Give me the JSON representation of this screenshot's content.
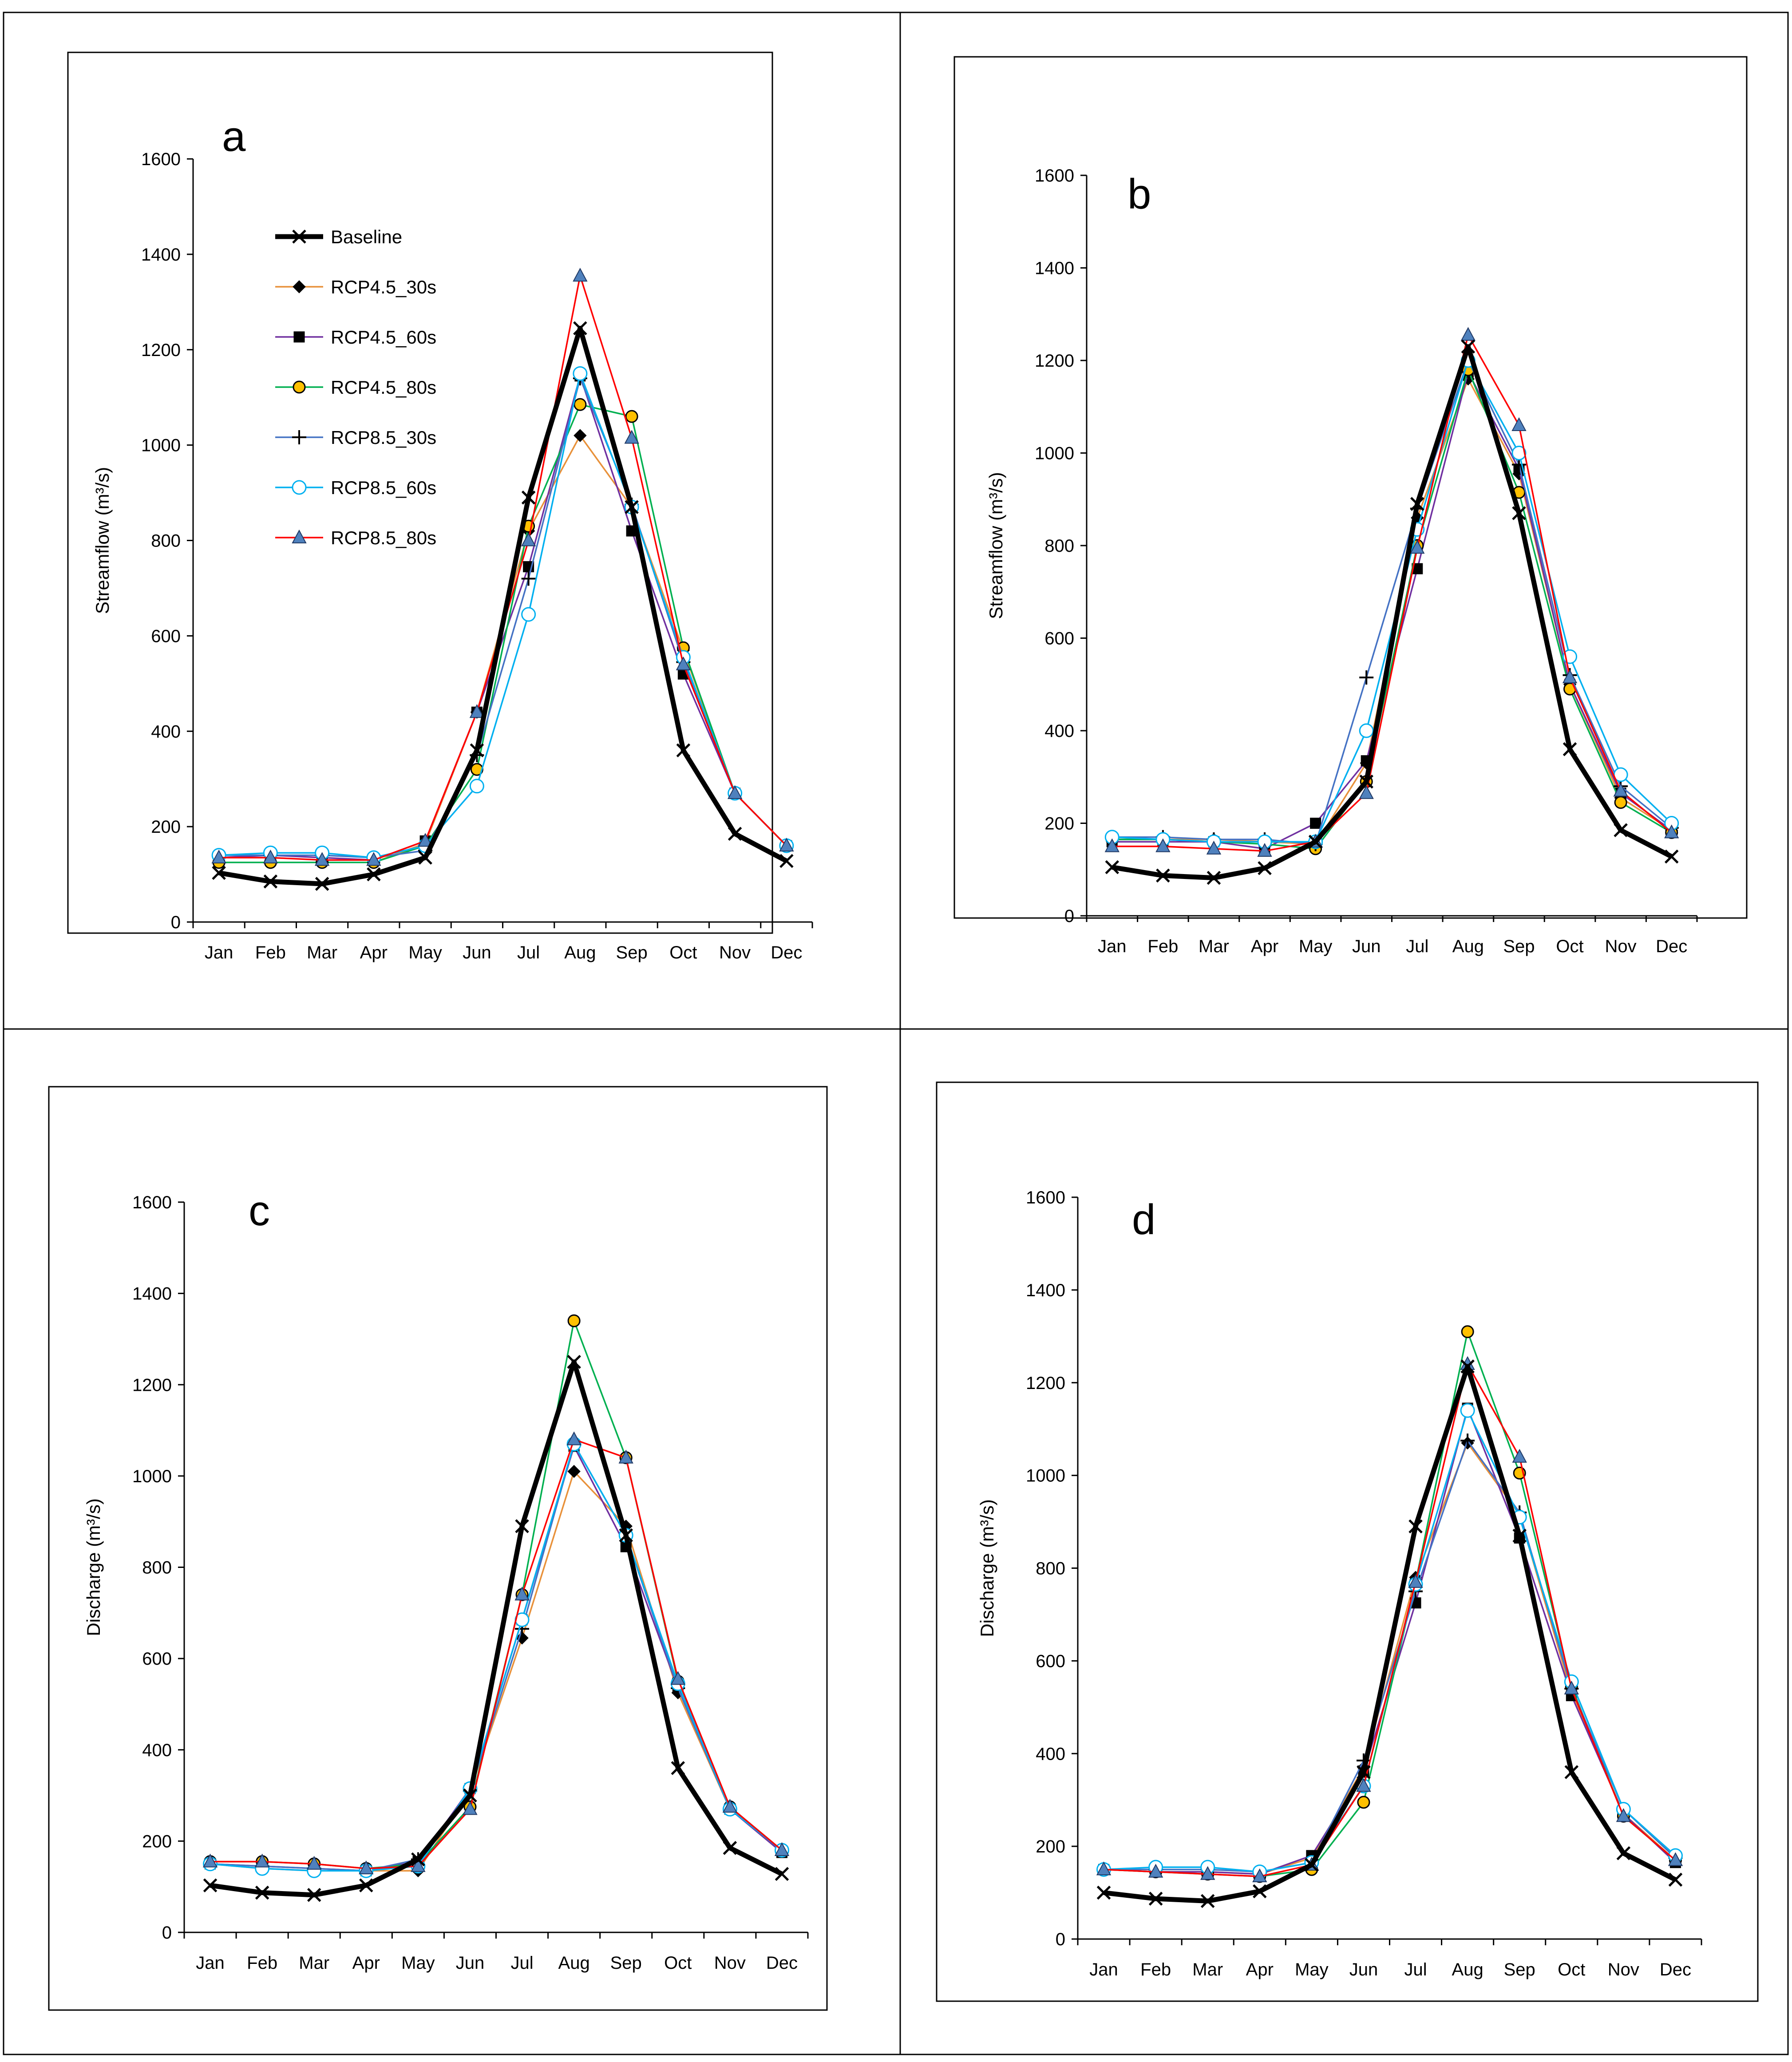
{
  "months": [
    "Jan",
    "Feb",
    "Mar",
    "Apr",
    "May",
    "Jun",
    "Jul",
    "Aug",
    "Sep",
    "Oct",
    "Nov",
    "Dec"
  ],
  "series_styles": [
    {
      "name": "Baseline",
      "color": "#000000",
      "marker": "x",
      "fill": "#000000",
      "width": "thick"
    },
    {
      "name": "RCP4.5_30s",
      "color": "#e8913a",
      "marker": "diamond",
      "fill": "#000000",
      "width": "thin"
    },
    {
      "name": "RCP4.5_60s",
      "color": "#7030a0",
      "marker": "square",
      "fill": "#000000",
      "width": "thin"
    },
    {
      "name": "RCP4.5_80s",
      "color": "#00b050",
      "marker": "circle",
      "fill": "#ffc000",
      "width": "thin"
    },
    {
      "name": "RCP8.5_30s",
      "color": "#4472c4",
      "marker": "plus",
      "fill": "#000000",
      "width": "thin"
    },
    {
      "name": "RCP8.5_60s",
      "color": "#00b0f0",
      "marker": "open-circle",
      "fill": "#ffffff",
      "width": "thin"
    },
    {
      "name": "RCP8.5_80s",
      "color": "#ff0000",
      "marker": "triangle",
      "fill": "#4f81bd",
      "width": "thin"
    }
  ],
  "chart_data": [
    {
      "panel": "a",
      "type": "line",
      "ylabel": "Streamflow (m³/s)",
      "xlabel": "",
      "ylim": [
        0,
        1600
      ],
      "yticks": [
        0,
        200,
        400,
        600,
        800,
        1000,
        1200,
        1400,
        1600
      ],
      "legend_position": "top-left",
      "series": [
        {
          "name": "Baseline",
          "values": [
            103,
            85,
            80,
            100,
            135,
            360,
            890,
            1245,
            870,
            360,
            185,
            128
          ]
        },
        {
          "name": "RCP4.5_30s",
          "values": [
            125,
            125,
            125,
            125,
            165,
            440,
            820,
            1020,
            870,
            570,
            270,
            160
          ]
        },
        {
          "name": "RCP4.5_60s",
          "values": [
            135,
            140,
            135,
            130,
            170,
            440,
            745,
            1145,
            820,
            520,
            270,
            160
          ]
        },
        {
          "name": "RCP4.5_80s",
          "values": [
            125,
            125,
            125,
            125,
            160,
            320,
            830,
            1085,
            1060,
            575,
            270,
            160
          ]
        },
        {
          "name": "RCP8.5_30s",
          "values": [
            140,
            140,
            140,
            135,
            150,
            350,
            720,
            1140,
            875,
            545,
            270,
            160
          ]
        },
        {
          "name": "RCP8.5_60s",
          "values": [
            140,
            145,
            145,
            135,
            160,
            285,
            645,
            1150,
            870,
            555,
            270,
            160
          ]
        },
        {
          "name": "RCP8.5_80s",
          "values": [
            135,
            135,
            130,
            130,
            170,
            440,
            800,
            1355,
            1015,
            540,
            270,
            160
          ]
        }
      ]
    },
    {
      "panel": "b",
      "type": "line",
      "ylabel": "Streamflow (m³/s)",
      "xlabel": "",
      "ylim": [
        0,
        1600
      ],
      "yticks": [
        0,
        200,
        400,
        600,
        800,
        1000,
        1200,
        1400,
        1600
      ],
      "series": [
        {
          "name": "Baseline",
          "values": [
            105,
            87,
            82,
            103,
            160,
            290,
            890,
            1230,
            870,
            360,
            185,
            128
          ]
        },
        {
          "name": "RCP4.5_30s",
          "values": [
            165,
            165,
            165,
            160,
            155,
            330,
            860,
            1160,
            955,
            500,
            255,
            185
          ]
        },
        {
          "name": "RCP4.5_60s",
          "values": [
            160,
            160,
            160,
            145,
            200,
            335,
            750,
            1175,
            965,
            500,
            265,
            185
          ]
        },
        {
          "name": "RCP4.5_80s",
          "values": [
            165,
            165,
            160,
            155,
            145,
            290,
            800,
            1180,
            915,
            490,
            245,
            180
          ]
        },
        {
          "name": "RCP8.5_30s",
          "values": [
            170,
            170,
            165,
            165,
            155,
            515,
            880,
            1200,
            975,
            520,
            280,
            190
          ]
        },
        {
          "name": "RCP8.5_60s",
          "values": [
            170,
            165,
            160,
            160,
            160,
            400,
            835,
            1200,
            1000,
            560,
            305,
            200
          ]
        },
        {
          "name": "RCP8.5_80s",
          "values": [
            150,
            150,
            145,
            140,
            160,
            265,
            795,
            1255,
            1060,
            515,
            270,
            180
          ]
        }
      ]
    },
    {
      "panel": "c",
      "type": "line",
      "ylabel": "Discharge (m³/s)",
      "xlabel": "",
      "ylim": [
        0,
        1600
      ],
      "yticks": [
        0,
        200,
        400,
        600,
        800,
        1000,
        1200,
        1400,
        1600
      ],
      "series": [
        {
          "name": "Baseline",
          "values": [
            103,
            87,
            82,
            103,
            160,
            300,
            890,
            1250,
            870,
            360,
            185,
            128
          ]
        },
        {
          "name": "RCP4.5_30s",
          "values": [
            150,
            140,
            135,
            135,
            135,
            310,
            645,
            1010,
            890,
            525,
            270,
            180
          ]
        },
        {
          "name": "RCP4.5_60s",
          "values": [
            150,
            145,
            140,
            135,
            155,
            315,
            685,
            1065,
            845,
            535,
            270,
            175
          ]
        },
        {
          "name": "RCP4.5_80s",
          "values": [
            155,
            155,
            150,
            140,
            150,
            275,
            740,
            1340,
            1040,
            550,
            275,
            180
          ]
        },
        {
          "name": "RCP8.5_30s",
          "values": [
            150,
            145,
            140,
            135,
            160,
            310,
            665,
            1070,
            870,
            535,
            270,
            180
          ]
        },
        {
          "name": "RCP8.5_60s",
          "values": [
            150,
            140,
            135,
            135,
            145,
            315,
            685,
            1070,
            870,
            545,
            270,
            180
          ]
        },
        {
          "name": "RCP8.5_80s",
          "values": [
            155,
            155,
            150,
            140,
            145,
            270,
            740,
            1080,
            1040,
            555,
            275,
            180
          ]
        }
      ]
    },
    {
      "panel": "d",
      "type": "line",
      "ylabel": "Discharge (m³/s)",
      "xlabel": "",
      "ylim": [
        0,
        1600
      ],
      "yticks": [
        0,
        200,
        400,
        600,
        800,
        1000,
        1200,
        1400,
        1600
      ],
      "series": [
        {
          "name": "Baseline",
          "values": [
            100,
            87,
            82,
            103,
            160,
            360,
            890,
            1235,
            870,
            360,
            185,
            128
          ]
        },
        {
          "name": "RCP4.5_30s",
          "values": [
            150,
            145,
            145,
            140,
            175,
            370,
            780,
            1070,
            915,
            530,
            270,
            170
          ]
        },
        {
          "name": "RCP4.5_60s",
          "values": [
            150,
            145,
            145,
            140,
            180,
            360,
            725,
            1145,
            865,
            525,
            270,
            165
          ]
        },
        {
          "name": "RCP4.5_80s",
          "values": [
            150,
            145,
            140,
            135,
            150,
            295,
            770,
            1310,
            1005,
            545,
            265,
            170
          ]
        },
        {
          "name": "RCP8.5_30s",
          "values": [
            150,
            150,
            150,
            145,
            165,
            385,
            750,
            1075,
            920,
            540,
            280,
            175
          ]
        },
        {
          "name": "RCP8.5_60s",
          "values": [
            150,
            155,
            155,
            145,
            165,
            330,
            765,
            1140,
            910,
            555,
            280,
            180
          ]
        },
        {
          "name": "RCP8.5_80s",
          "values": [
            150,
            145,
            140,
            135,
            160,
            330,
            770,
            1240,
            1040,
            540,
            265,
            170
          ]
        }
      ]
    }
  ]
}
